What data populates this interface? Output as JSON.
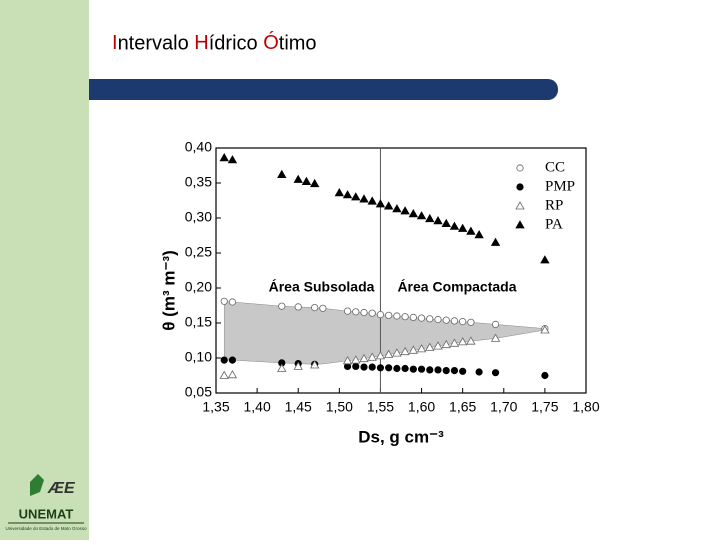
{
  "title": "Intervalo Hídrico Ótimo",
  "logo": {
    "name": "UNEMAT",
    "subtitle": "Universidade do Estado de Mato Grosso"
  },
  "chart_data": {
    "type": "scatter",
    "x_label": "Ds, g cm⁻³",
    "y_label": "θ (m³ m⁻³)",
    "annotations": [
      "Área Subsolada",
      "Área Compactada"
    ],
    "vline": 1.55,
    "xlim": [
      1.35,
      1.8
    ],
    "ylim": [
      0.05,
      0.4
    ],
    "xticks": [
      {
        "value": 1.35,
        "label": "1,35"
      },
      {
        "value": 1.4,
        "label": "1,40"
      },
      {
        "value": 1.45,
        "label": "1,45"
      },
      {
        "value": 1.5,
        "label": "1,50"
      },
      {
        "value": 1.55,
        "label": "1,55"
      },
      {
        "value": 1.6,
        "label": "1,60"
      },
      {
        "value": 1.65,
        "label": "1,65"
      },
      {
        "value": 1.7,
        "label": "1,70"
      },
      {
        "value": 1.75,
        "label": "1,75"
      },
      {
        "value": 1.8,
        "label": "1,80"
      }
    ],
    "yticks": [
      {
        "value": 0.05,
        "label": "0,05"
      },
      {
        "value": 0.1,
        "label": "0,10"
      },
      {
        "value": 0.15,
        "label": "0,15"
      },
      {
        "value": 0.2,
        "label": "0,20"
      },
      {
        "value": 0.25,
        "label": "0,25"
      },
      {
        "value": 0.3,
        "label": "0,30"
      },
      {
        "value": 0.35,
        "label": "0,35"
      },
      {
        "value": 0.4,
        "label": "0,40"
      }
    ],
    "legend": "upper right",
    "series": [
      {
        "name": "CC",
        "color": "#000000",
        "marker": "circle-open",
        "x": [
          1.36,
          1.37,
          1.43,
          1.45,
          1.47,
          1.48,
          1.51,
          1.52,
          1.53,
          1.54,
          1.55,
          1.56,
          1.57,
          1.58,
          1.59,
          1.6,
          1.61,
          1.62,
          1.63,
          1.64,
          1.65,
          1.66,
          1.69,
          1.75
        ],
        "values": [
          0.181,
          0.18,
          0.174,
          0.173,
          0.172,
          0.171,
          0.167,
          0.166,
          0.165,
          0.164,
          0.162,
          0.161,
          0.16,
          0.159,
          0.158,
          0.157,
          0.156,
          0.155,
          0.154,
          0.153,
          0.152,
          0.151,
          0.148,
          0.142
        ]
      },
      {
        "name": "PMP",
        "color": "#000000",
        "marker": "circle",
        "x": [
          1.36,
          1.37,
          1.43,
          1.45,
          1.47,
          1.51,
          1.52,
          1.53,
          1.54,
          1.55,
          1.56,
          1.57,
          1.58,
          1.59,
          1.6,
          1.61,
          1.62,
          1.63,
          1.64,
          1.65,
          1.67,
          1.69,
          1.75
        ],
        "values": [
          0.097,
          0.097,
          0.093,
          0.092,
          0.091,
          0.088,
          0.088,
          0.087,
          0.087,
          0.086,
          0.086,
          0.085,
          0.085,
          0.084,
          0.084,
          0.083,
          0.083,
          0.082,
          0.082,
          0.081,
          0.08,
          0.079,
          0.075
        ]
      },
      {
        "name": "RP",
        "color": "#000000",
        "marker": "triangle-open",
        "x": [
          1.36,
          1.37,
          1.43,
          1.45,
          1.47,
          1.51,
          1.52,
          1.53,
          1.54,
          1.55,
          1.56,
          1.57,
          1.58,
          1.59,
          1.6,
          1.61,
          1.62,
          1.63,
          1.64,
          1.65,
          1.66,
          1.69,
          1.75
        ],
        "values": [
          0.075,
          0.076,
          0.085,
          0.088,
          0.09,
          0.096,
          0.097,
          0.099,
          0.101,
          0.103,
          0.105,
          0.107,
          0.109,
          0.111,
          0.113,
          0.115,
          0.117,
          0.119,
          0.121,
          0.123,
          0.124,
          0.128,
          0.14
        ]
      },
      {
        "name": "PA",
        "color": "#000000",
        "marker": "triangle",
        "x": [
          1.36,
          1.37,
          1.43,
          1.45,
          1.46,
          1.47,
          1.5,
          1.51,
          1.52,
          1.53,
          1.54,
          1.55,
          1.56,
          1.57,
          1.58,
          1.59,
          1.6,
          1.61,
          1.62,
          1.63,
          1.64,
          1.65,
          1.66,
          1.67,
          1.69,
          1.75
        ],
        "values": [
          0.386,
          0.383,
          0.362,
          0.355,
          0.352,
          0.349,
          0.336,
          0.333,
          0.33,
          0.327,
          0.324,
          0.32,
          0.317,
          0.313,
          0.31,
          0.306,
          0.303,
          0.299,
          0.296,
          0.292,
          0.288,
          0.285,
          0.281,
          0.276,
          0.265,
          0.24
        ]
      }
    ]
  }
}
